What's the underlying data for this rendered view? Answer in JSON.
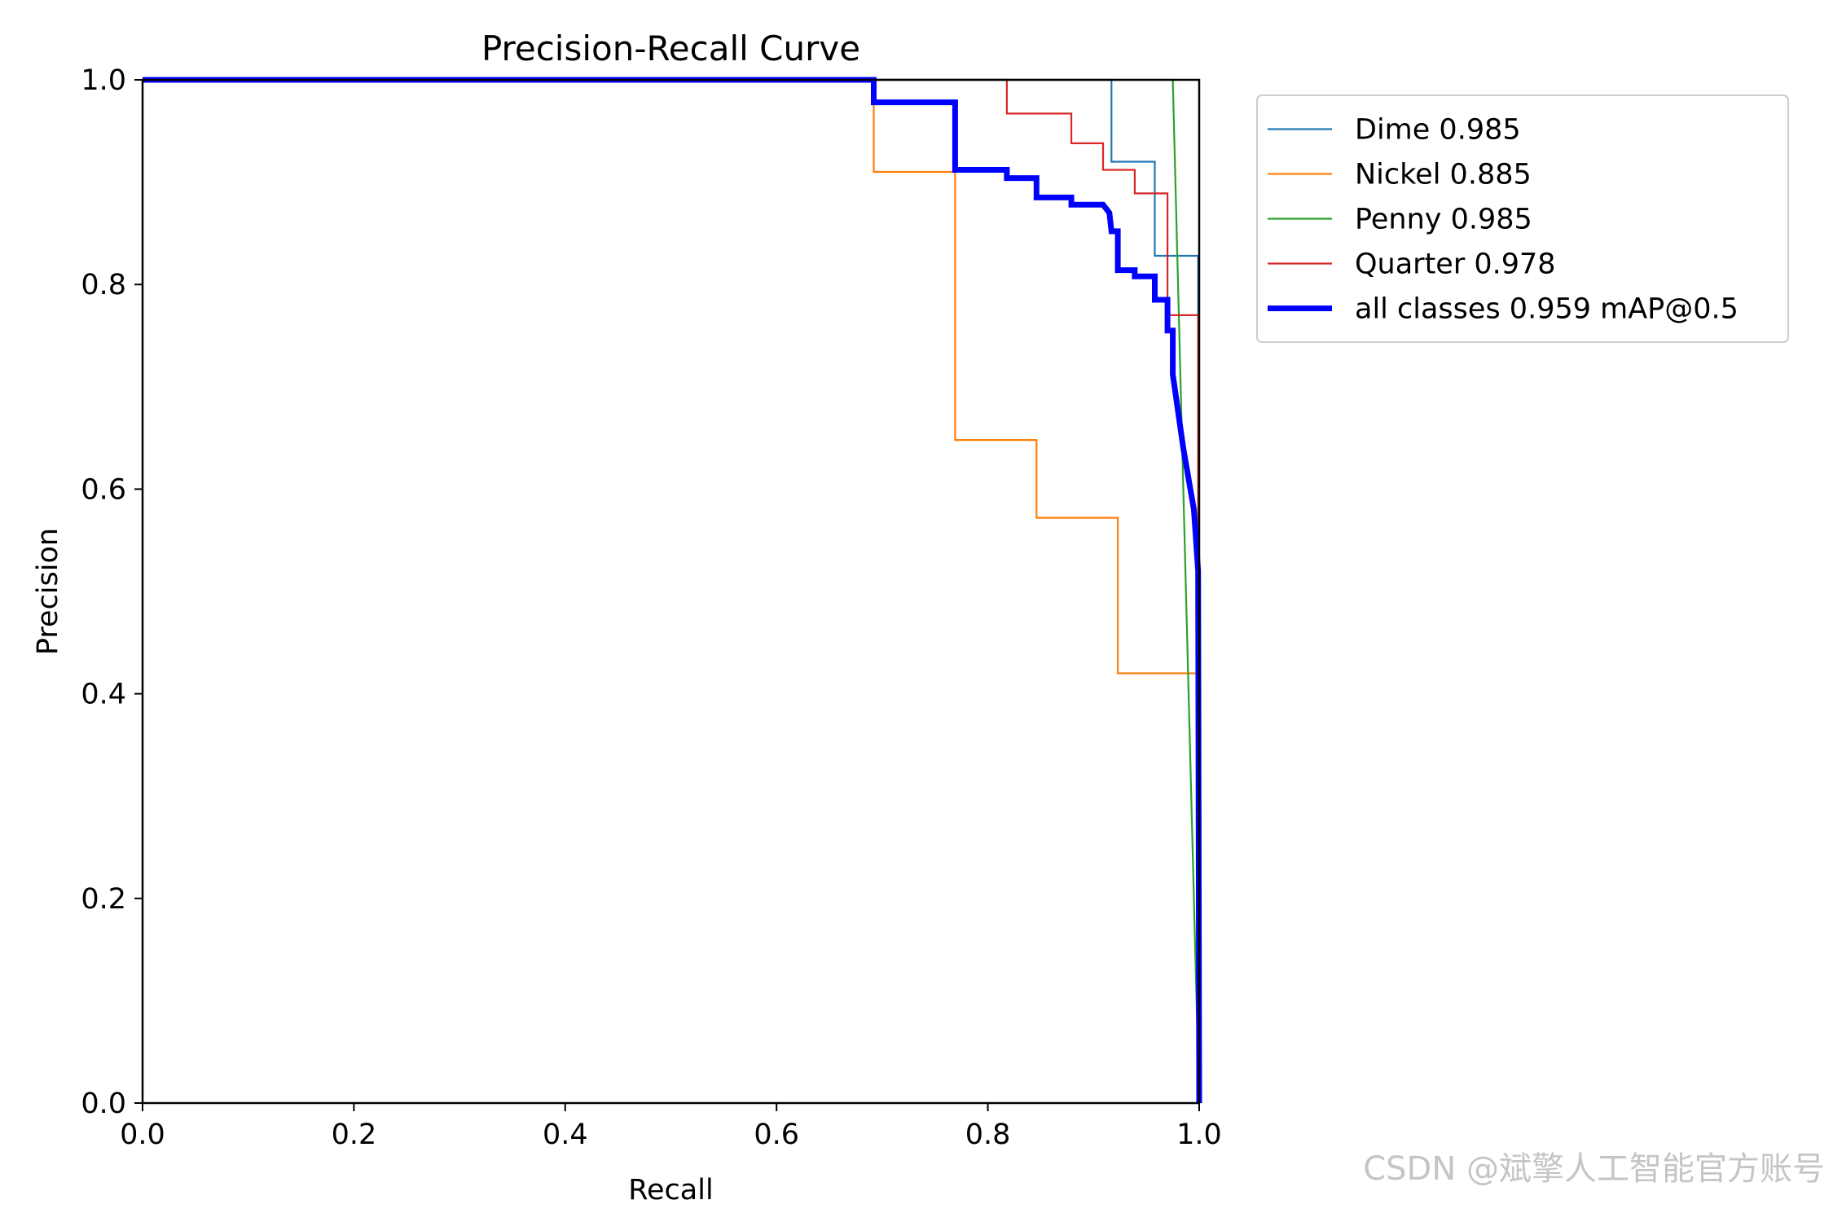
{
  "chart_data": {
    "type": "line",
    "title": "Precision-Recall Curve",
    "xlabel": "Recall",
    "ylabel": "Precision",
    "xlim": [
      0,
      1
    ],
    "ylim": [
      0,
      1
    ],
    "xticks": [
      "0.0",
      "0.2",
      "0.4",
      "0.6",
      "0.8",
      "1.0"
    ],
    "yticks": [
      "0.0",
      "0.2",
      "0.4",
      "0.6",
      "0.8",
      "1.0"
    ],
    "legend_position": "outside-top-right",
    "series": [
      {
        "name": "Dime 0.985",
        "color": "#1f77b4",
        "style": "thin",
        "points": [
          [
            0,
            1
          ],
          [
            0.917,
            1
          ],
          [
            0.917,
            0.92
          ],
          [
            0.958,
            0.92
          ],
          [
            0.958,
            0.828
          ],
          [
            0.999,
            0.828
          ],
          [
            0.999,
            0.77
          ],
          [
            1,
            0
          ]
        ]
      },
      {
        "name": "Nickel 0.885",
        "color": "#ff7f0e",
        "style": "thin",
        "points": [
          [
            0,
            1
          ],
          [
            0.692,
            1
          ],
          [
            0.692,
            0.91
          ],
          [
            0.769,
            0.91
          ],
          [
            0.769,
            0.648
          ],
          [
            0.846,
            0.648
          ],
          [
            0.846,
            0.572
          ],
          [
            0.923,
            0.572
          ],
          [
            0.923,
            0.42
          ],
          [
            0.999,
            0.42
          ],
          [
            1,
            0
          ]
        ]
      },
      {
        "name": "Penny 0.985",
        "color": "#2ca02c",
        "style": "thin",
        "points": [
          [
            0,
            1
          ],
          [
            0.975,
            1
          ],
          [
            0.985,
            0.6
          ],
          [
            0.995,
            0.2
          ],
          [
            1,
            0
          ]
        ]
      },
      {
        "name": "Quarter 0.978",
        "color": "#d62728",
        "style": "thin",
        "points": [
          [
            0,
            1
          ],
          [
            0.818,
            1
          ],
          [
            0.818,
            0.967
          ],
          [
            0.879,
            0.967
          ],
          [
            0.879,
            0.938
          ],
          [
            0.909,
            0.938
          ],
          [
            0.909,
            0.912
          ],
          [
            0.939,
            0.912
          ],
          [
            0.939,
            0.889
          ],
          [
            0.97,
            0.889
          ],
          [
            0.97,
            0.77
          ],
          [
            0.999,
            0.77
          ],
          [
            0.999,
            0.5
          ],
          [
            1,
            0
          ]
        ]
      },
      {
        "name": "all classes 0.959 mAP@0.5",
        "color": "#0000ff",
        "style": "thick",
        "points": [
          [
            0,
            1
          ],
          [
            0.692,
            1
          ],
          [
            0.692,
            0.978
          ],
          [
            0.769,
            0.978
          ],
          [
            0.769,
            0.912
          ],
          [
            0.818,
            0.912
          ],
          [
            0.818,
            0.904
          ],
          [
            0.846,
            0.904
          ],
          [
            0.846,
            0.885
          ],
          [
            0.879,
            0.885
          ],
          [
            0.879,
            0.878
          ],
          [
            0.909,
            0.878
          ],
          [
            0.915,
            0.87
          ],
          [
            0.917,
            0.852
          ],
          [
            0.923,
            0.852
          ],
          [
            0.923,
            0.814
          ],
          [
            0.939,
            0.814
          ],
          [
            0.939,
            0.808
          ],
          [
            0.958,
            0.808
          ],
          [
            0.958,
            0.785
          ],
          [
            0.97,
            0.785
          ],
          [
            0.97,
            0.755
          ],
          [
            0.975,
            0.755
          ],
          [
            0.975,
            0.712
          ],
          [
            0.985,
            0.64
          ],
          [
            0.995,
            0.58
          ],
          [
            0.999,
            0.52
          ],
          [
            1,
            0
          ]
        ]
      }
    ]
  },
  "watermark": "CSDN @斌擎人工智能官方账号"
}
